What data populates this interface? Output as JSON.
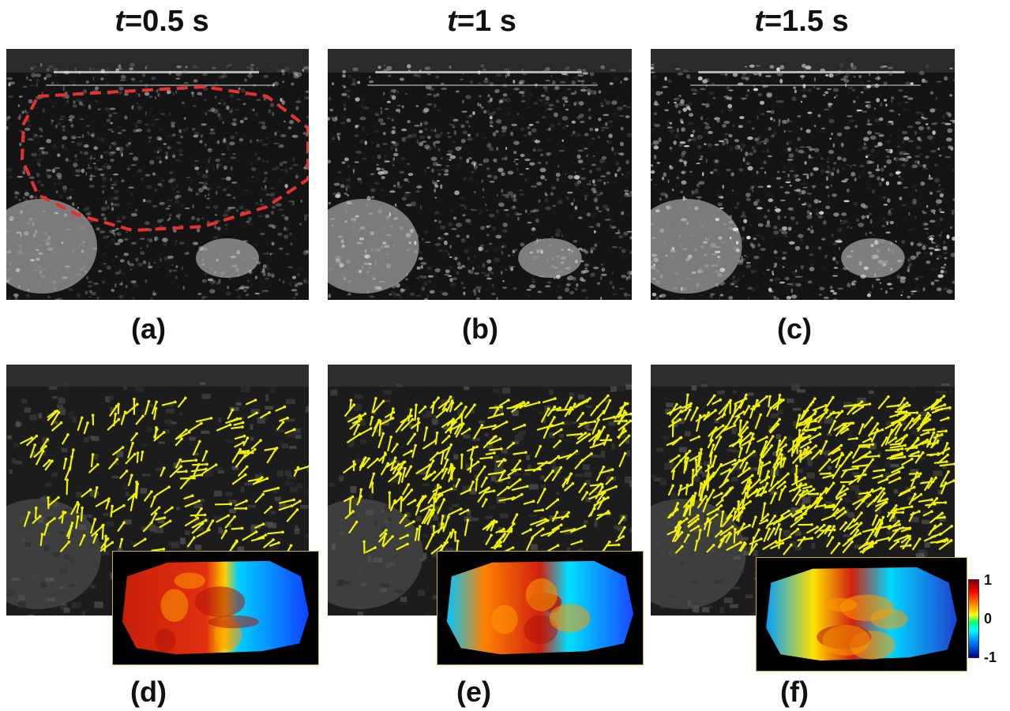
{
  "titles": [
    {
      "var": "t",
      "rest": "=0.5 s"
    },
    {
      "var": "t",
      "rest": "=1 s"
    },
    {
      "var": "t",
      "rest": "=1.5 s"
    }
  ],
  "labels": [
    "(a)",
    "(b)",
    "(c)",
    "(d)",
    "(e)",
    "(f)"
  ],
  "colorbar": {
    "max": "1",
    "mid": "0",
    "min": "-1"
  },
  "colors": {
    "roi_outline": "#e8302c",
    "vector_arrows": "#f2f200",
    "inset_border": "#c8b43a"
  }
}
